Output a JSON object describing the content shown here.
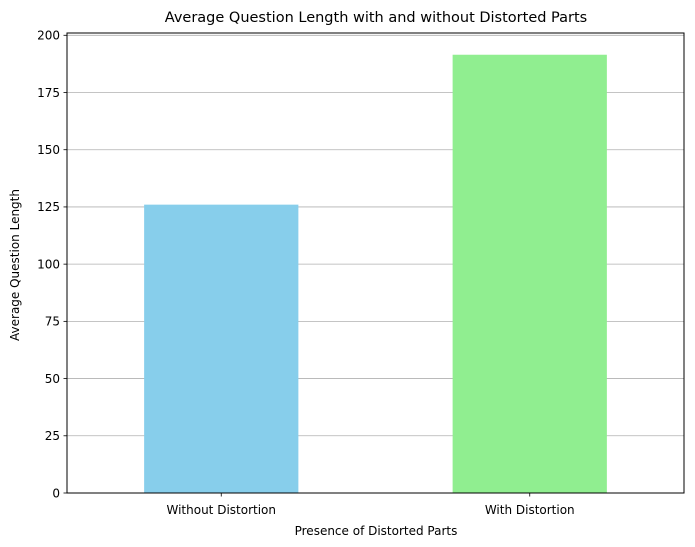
{
  "chart_data": {
    "type": "bar",
    "title": "Average Question Length with and without Distorted Parts",
    "xlabel": "Presence of Distorted Parts",
    "ylabel": "Average Question Length",
    "categories": [
      "Without Distortion",
      "With Distortion"
    ],
    "values": [
      126,
      191.5
    ],
    "colors": [
      "#87ceeb",
      "#90ee90"
    ],
    "ylim": [
      0,
      201
    ],
    "yticks": [
      0,
      25,
      50,
      75,
      100,
      125,
      150,
      175,
      200
    ],
    "grid": "y",
    "legend": "none"
  }
}
